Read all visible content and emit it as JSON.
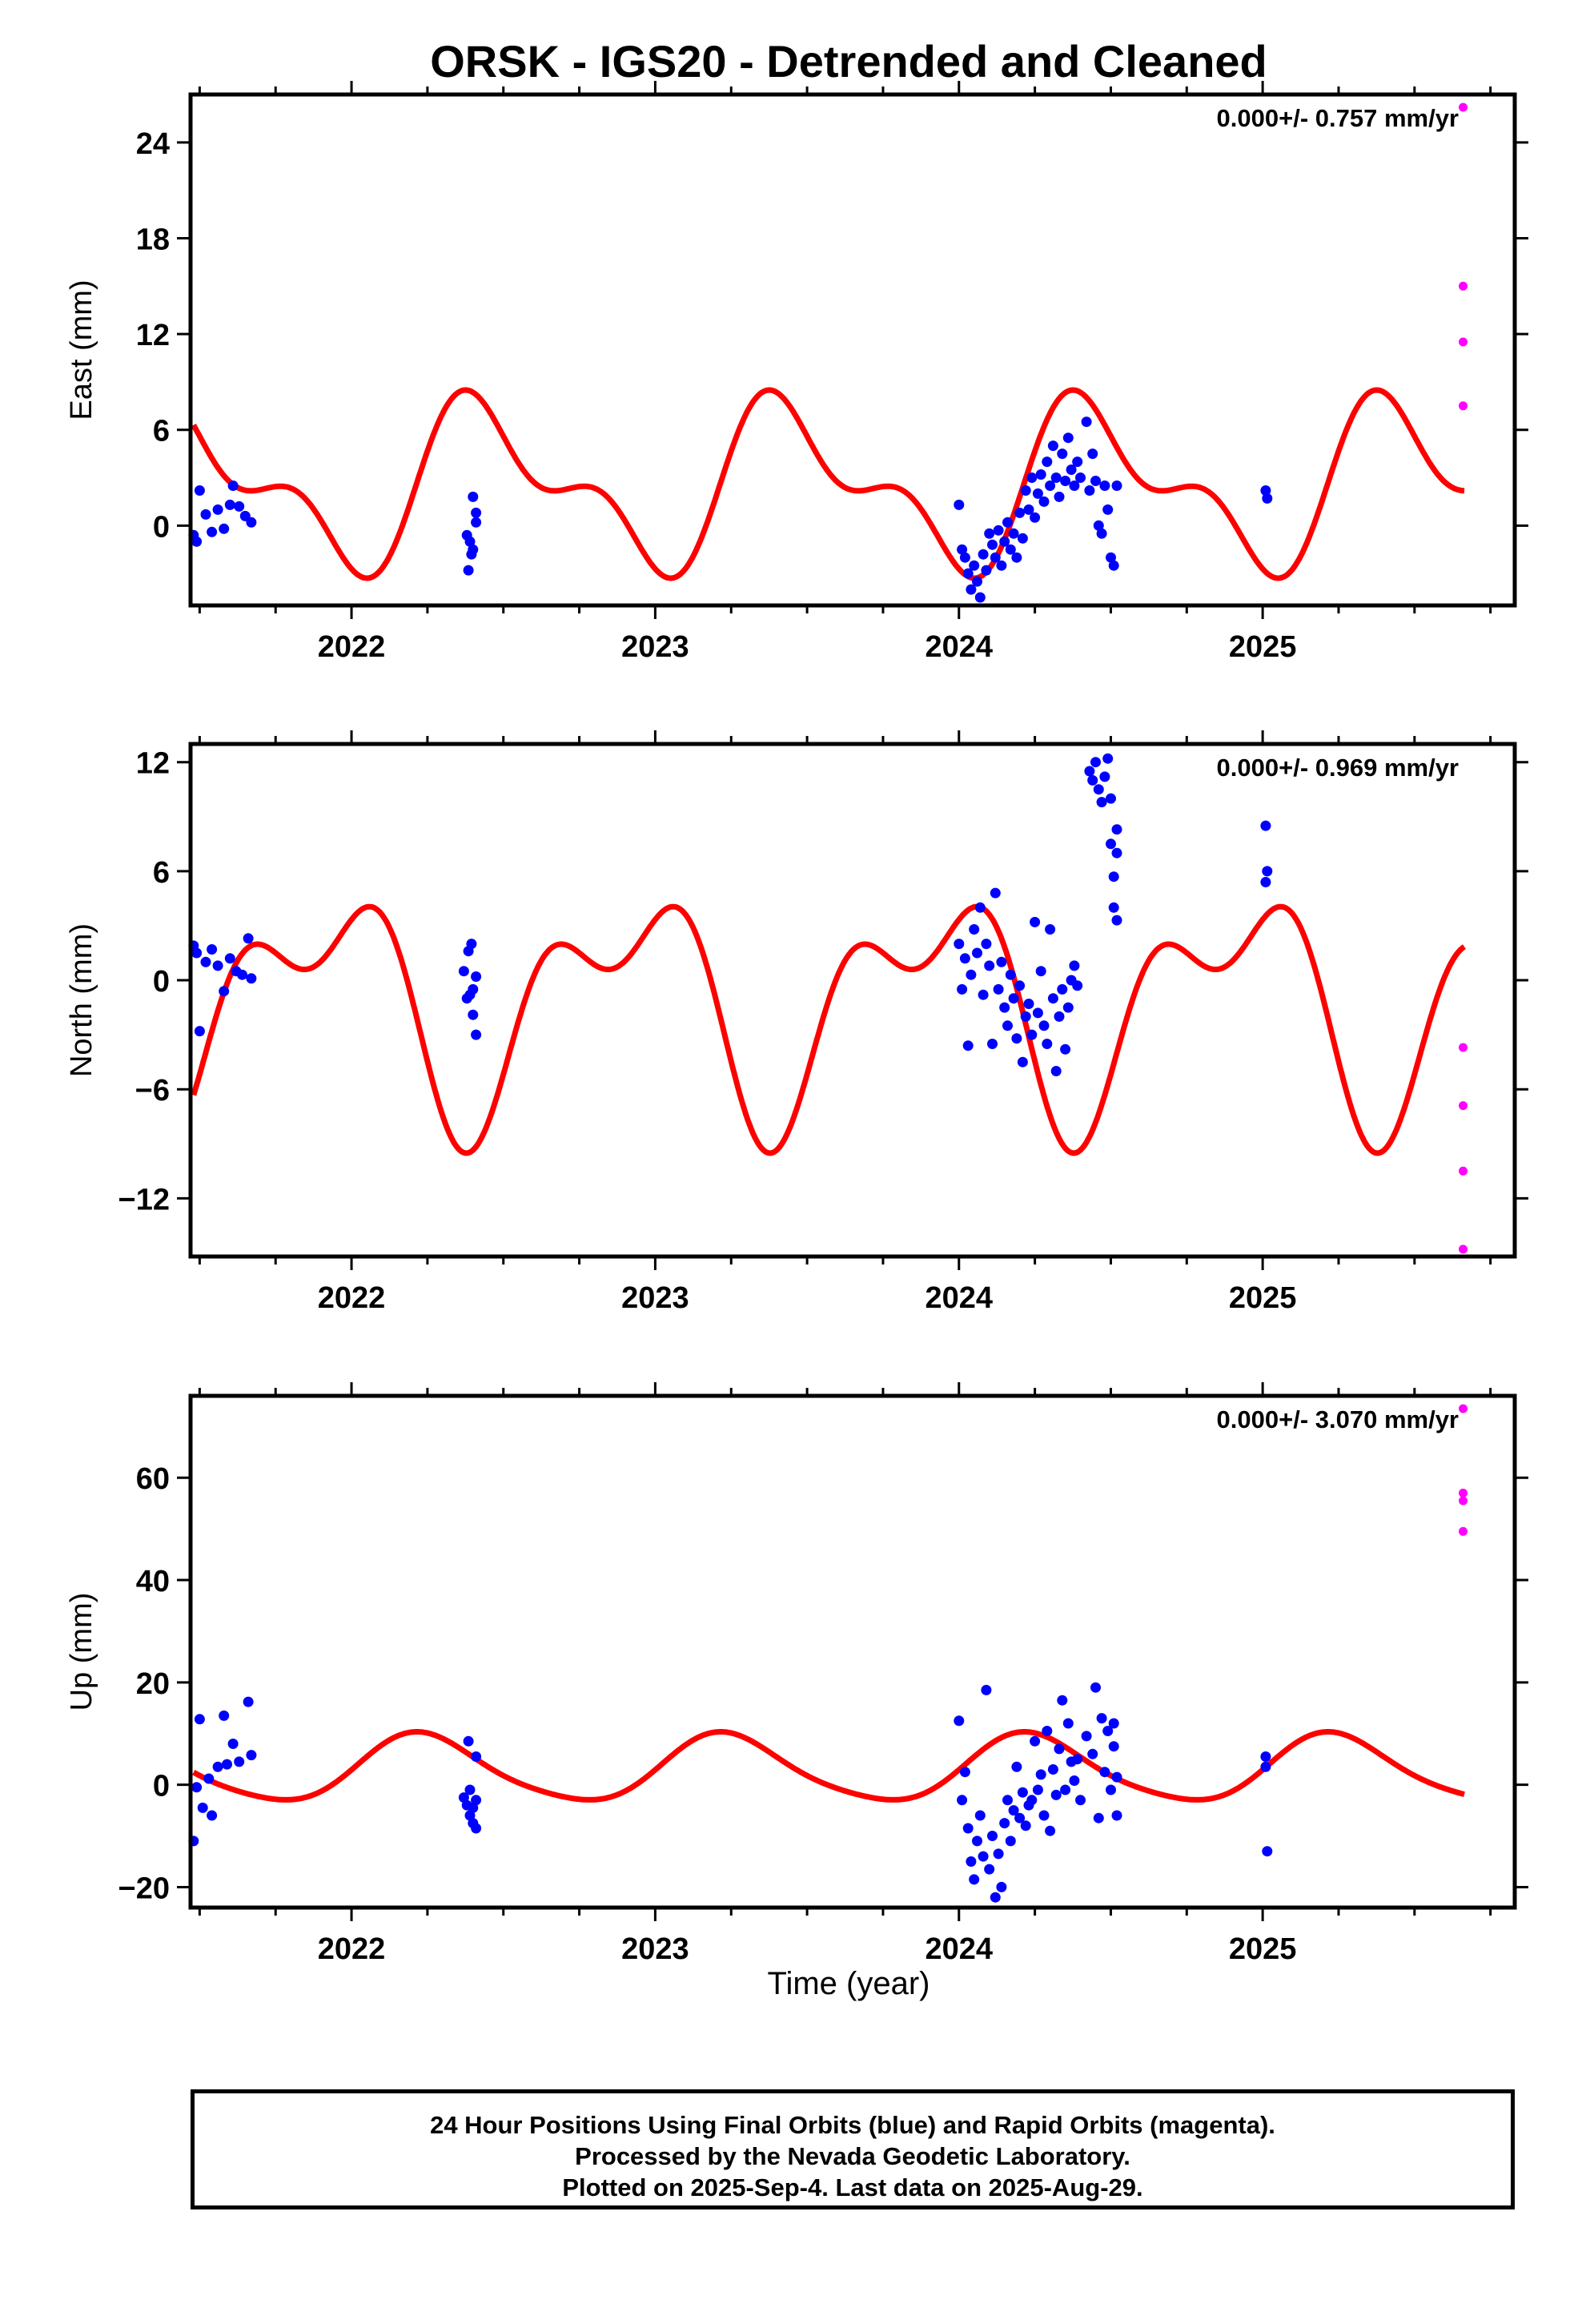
{
  "chart_data": {
    "type": "scatter",
    "title": "ORSK - IGS20 - Detrended and Cleaned",
    "xlabel": "Time (year)",
    "xlim": [
      2021.47,
      2025.83
    ],
    "xticks": [
      2022,
      2023,
      2024,
      2025
    ],
    "colors": {
      "final": "#0000ff",
      "rapid": "#ff00ff",
      "model": "#ff0000",
      "axes": "#000000"
    },
    "panels": [
      {
        "name": "east",
        "ylabel": "East (mm)",
        "ylim": [
          -5.0,
          27.0
        ],
        "yticks": [
          0,
          6,
          12,
          18,
          24
        ],
        "ytick_labels": [
          "0",
          "6",
          "12",
          "18",
          "24"
        ],
        "rate": "0.000+/- 0.757 mm/yr",
        "model": {
          "offset": 2.5,
          "annual_amp": 4.3,
          "annual_phase_deg": 285,
          "semiannual_amp": 2.5,
          "semiannual_phase_deg": 205
        },
        "final": [
          [
            2021.48,
            -0.6
          ],
          [
            2021.49,
            -1.0
          ],
          [
            2021.5,
            2.2
          ],
          [
            2021.52,
            0.7
          ],
          [
            2021.54,
            -0.4
          ],
          [
            2021.56,
            1.0
          ],
          [
            2021.58,
            -0.2
          ],
          [
            2021.6,
            1.3
          ],
          [
            2021.61,
            2.5
          ],
          [
            2021.63,
            1.2
          ],
          [
            2021.65,
            0.6
          ],
          [
            2021.67,
            0.2
          ],
          [
            2022.38,
            -0.6
          ],
          [
            2022.385,
            -2.8
          ],
          [
            2022.39,
            -1.0
          ],
          [
            2022.395,
            -1.8
          ],
          [
            2022.4,
            1.8
          ],
          [
            2022.4,
            -1.5
          ],
          [
            2022.41,
            0.8
          ],
          [
            2022.41,
            0.2
          ],
          [
            2024.0,
            1.3
          ],
          [
            2024.01,
            -1.5
          ],
          [
            2024.02,
            -2.0
          ],
          [
            2024.03,
            -3.0
          ],
          [
            2024.04,
            -4.0
          ],
          [
            2024.05,
            -2.5
          ],
          [
            2024.06,
            -3.5
          ],
          [
            2024.07,
            -4.5
          ],
          [
            2024.08,
            -1.8
          ],
          [
            2024.09,
            -2.8
          ],
          [
            2024.1,
            -0.5
          ],
          [
            2024.11,
            -1.2
          ],
          [
            2024.12,
            -2.0
          ],
          [
            2024.13,
            -0.3
          ],
          [
            2024.14,
            -2.5
          ],
          [
            2024.15,
            -1.0
          ],
          [
            2024.16,
            0.2
          ],
          [
            2024.17,
            -1.5
          ],
          [
            2024.18,
            -0.5
          ],
          [
            2024.19,
            -2.0
          ],
          [
            2024.2,
            0.8
          ],
          [
            2024.21,
            -0.8
          ],
          [
            2024.22,
            2.2
          ],
          [
            2024.23,
            1.0
          ],
          [
            2024.24,
            3.0
          ],
          [
            2024.25,
            0.5
          ],
          [
            2024.26,
            2.0
          ],
          [
            2024.27,
            3.2
          ],
          [
            2024.28,
            1.5
          ],
          [
            2024.29,
            4.0
          ],
          [
            2024.3,
            2.5
          ],
          [
            2024.31,
            5.0
          ],
          [
            2024.32,
            3.0
          ],
          [
            2024.33,
            1.8
          ],
          [
            2024.34,
            4.5
          ],
          [
            2024.35,
            2.8
          ],
          [
            2024.36,
            5.5
          ],
          [
            2024.37,
            3.5
          ],
          [
            2024.38,
            2.5
          ],
          [
            2024.39,
            4.0
          ],
          [
            2024.4,
            3.0
          ],
          [
            2024.42,
            6.5
          ],
          [
            2024.43,
            2.2
          ],
          [
            2024.44,
            4.5
          ],
          [
            2024.45,
            2.8
          ],
          [
            2024.46,
            0.0
          ],
          [
            2024.47,
            -0.5
          ],
          [
            2024.48,
            2.5
          ],
          [
            2024.49,
            1.0
          ],
          [
            2024.5,
            -2.0
          ],
          [
            2024.51,
            -2.5
          ],
          [
            2024.52,
            2.5
          ],
          [
            2025.01,
            2.2
          ],
          [
            2025.015,
            1.7
          ]
        ],
        "rapid": [
          [
            2025.66,
            26.2
          ],
          [
            2025.66,
            15.0
          ],
          [
            2025.66,
            11.5
          ],
          [
            2025.66,
            7.5
          ]
        ]
      },
      {
        "name": "north",
        "ylabel": "North (mm)",
        "ylim": [
          -15.2,
          13.0
        ],
        "yticks": [
          -12,
          -6,
          0,
          6,
          12
        ],
        "ytick_labels": [
          "−12",
          "−6",
          "0",
          "6",
          "12"
        ],
        "rate": "0.000+/- 0.969 mm/yr",
        "model": {
          "offset": -1.2,
          "annual_amp": 5.2,
          "annual_phase_deg": 125,
          "semiannual_amp": 3.2,
          "semiannual_phase_deg": 5
        },
        "final": [
          [
            2021.48,
            1.9
          ],
          [
            2021.49,
            1.5
          ],
          [
            2021.5,
            -2.8
          ],
          [
            2021.52,
            1.0
          ],
          [
            2021.54,
            1.7
          ],
          [
            2021.56,
            0.8
          ],
          [
            2021.58,
            -0.6
          ],
          [
            2021.6,
            1.2
          ],
          [
            2021.62,
            0.5
          ],
          [
            2021.64,
            0.3
          ],
          [
            2021.66,
            2.3
          ],
          [
            2021.67,
            0.1
          ],
          [
            2022.37,
            0.5
          ],
          [
            2022.38,
            -1.0
          ],
          [
            2022.385,
            1.6
          ],
          [
            2022.39,
            -0.8
          ],
          [
            2022.395,
            2.0
          ],
          [
            2022.4,
            -1.9
          ],
          [
            2022.4,
            -0.5
          ],
          [
            2022.41,
            -3.0
          ],
          [
            2022.41,
            0.2
          ],
          [
            2024.0,
            2.0
          ],
          [
            2024.01,
            -0.5
          ],
          [
            2024.02,
            1.2
          ],
          [
            2024.03,
            -3.6
          ],
          [
            2024.04,
            0.3
          ],
          [
            2024.05,
            2.8
          ],
          [
            2024.06,
            1.5
          ],
          [
            2024.07,
            4.0
          ],
          [
            2024.08,
            -0.8
          ],
          [
            2024.09,
            2.0
          ],
          [
            2024.1,
            0.8
          ],
          [
            2024.11,
            -3.5
          ],
          [
            2024.12,
            4.8
          ],
          [
            2024.13,
            -0.5
          ],
          [
            2024.14,
            1.0
          ],
          [
            2024.15,
            -1.5
          ],
          [
            2024.16,
            -2.5
          ],
          [
            2024.17,
            0.3
          ],
          [
            2024.18,
            -1.0
          ],
          [
            2024.19,
            -3.2
          ],
          [
            2024.2,
            -0.3
          ],
          [
            2024.21,
            -4.5
          ],
          [
            2024.22,
            -2.0
          ],
          [
            2024.23,
            -1.3
          ],
          [
            2024.24,
            -3.0
          ],
          [
            2024.25,
            3.2
          ],
          [
            2024.26,
            -1.8
          ],
          [
            2024.27,
            0.5
          ],
          [
            2024.28,
            -2.5
          ],
          [
            2024.29,
            -3.5
          ],
          [
            2024.3,
            2.8
          ],
          [
            2024.31,
            -1.0
          ],
          [
            2024.32,
            -5.0
          ],
          [
            2024.33,
            -2.0
          ],
          [
            2024.34,
            -0.5
          ],
          [
            2024.35,
            -3.8
          ],
          [
            2024.36,
            -1.5
          ],
          [
            2024.37,
            0.0
          ],
          [
            2024.38,
            0.8
          ],
          [
            2024.39,
            -0.3
          ],
          [
            2024.43,
            11.5
          ],
          [
            2024.44,
            11.0
          ],
          [
            2024.45,
            12.0
          ],
          [
            2024.46,
            10.5
          ],
          [
            2024.47,
            9.8
          ],
          [
            2024.48,
            11.2
          ],
          [
            2024.49,
            12.2
          ],
          [
            2024.5,
            10.0
          ],
          [
            2024.5,
            7.5
          ],
          [
            2024.51,
            5.7
          ],
          [
            2024.51,
            4.0
          ],
          [
            2024.52,
            3.3
          ],
          [
            2024.52,
            8.3
          ],
          [
            2024.52,
            7.0
          ],
          [
            2025.01,
            8.5
          ],
          [
            2025.015,
            6.0
          ],
          [
            2025.01,
            5.4
          ]
        ],
        "rapid": [
          [
            2025.66,
            -3.7
          ],
          [
            2025.66,
            -6.9
          ],
          [
            2025.66,
            -10.5
          ],
          [
            2025.66,
            -14.8
          ]
        ]
      },
      {
        "name": "up",
        "ylabel": "Up (mm)",
        "ylim": [
          -24.0,
          76.0
        ],
        "yticks": [
          -20,
          0,
          20,
          40,
          60
        ],
        "ytick_labels": [
          "−20",
          "0",
          "20",
          "40",
          "60"
        ],
        "rate": "0.000+/- 3.070 mm/yr",
        "model": {
          "offset": 3.0,
          "annual_amp": 6.5,
          "annual_phase_deg": 5,
          "semiannual_amp": 1.0,
          "semiannual_phase_deg": 320
        },
        "final": [
          [
            2021.48,
            -11.0
          ],
          [
            2021.49,
            -0.5
          ],
          [
            2021.5,
            12.8
          ],
          [
            2021.51,
            -4.5
          ],
          [
            2021.53,
            1.2
          ],
          [
            2021.54,
            -6.0
          ],
          [
            2021.56,
            3.5
          ],
          [
            2021.58,
            13.5
          ],
          [
            2021.59,
            4.0
          ],
          [
            2021.61,
            8.0
          ],
          [
            2021.63,
            4.5
          ],
          [
            2021.66,
            16.2
          ],
          [
            2021.67,
            5.8
          ],
          [
            2022.37,
            -2.5
          ],
          [
            2022.38,
            -4.0
          ],
          [
            2022.385,
            8.5
          ],
          [
            2022.39,
            -6.0
          ],
          [
            2022.39,
            -1.0
          ],
          [
            2022.4,
            -7.5
          ],
          [
            2022.4,
            -4.5
          ],
          [
            2022.41,
            5.5
          ],
          [
            2022.41,
            -8.5
          ],
          [
            2022.41,
            -3.0
          ],
          [
            2024.0,
            12.5
          ],
          [
            2024.01,
            -3.0
          ],
          [
            2024.02,
            2.5
          ],
          [
            2024.03,
            -8.5
          ],
          [
            2024.04,
            -15.0
          ],
          [
            2024.05,
            -18.5
          ],
          [
            2024.06,
            -11.0
          ],
          [
            2024.07,
            -6.0
          ],
          [
            2024.08,
            -14.0
          ],
          [
            2024.09,
            18.5
          ],
          [
            2024.1,
            -16.5
          ],
          [
            2024.11,
            -10.0
          ],
          [
            2024.12,
            -22.0
          ],
          [
            2024.13,
            -13.5
          ],
          [
            2024.14,
            -20.0
          ],
          [
            2024.15,
            -7.5
          ],
          [
            2024.16,
            -3.0
          ],
          [
            2024.17,
            -11.0
          ],
          [
            2024.18,
            -5.0
          ],
          [
            2024.19,
            3.5
          ],
          [
            2024.2,
            -6.5
          ],
          [
            2024.21,
            -1.5
          ],
          [
            2024.22,
            -8.0
          ],
          [
            2024.23,
            -4.0
          ],
          [
            2024.24,
            -3.0
          ],
          [
            2024.25,
            8.5
          ],
          [
            2024.26,
            -1.0
          ],
          [
            2024.27,
            2.0
          ],
          [
            2024.28,
            -6.0
          ],
          [
            2024.29,
            10.5
          ],
          [
            2024.3,
            -9.0
          ],
          [
            2024.31,
            3.0
          ],
          [
            2024.32,
            -2.0
          ],
          [
            2024.33,
            7.0
          ],
          [
            2024.34,
            16.5
          ],
          [
            2024.35,
            -1.0
          ],
          [
            2024.36,
            12.0
          ],
          [
            2024.37,
            4.5
          ],
          [
            2024.38,
            0.8
          ],
          [
            2024.39,
            5.0
          ],
          [
            2024.4,
            -3.0
          ],
          [
            2024.42,
            9.5
          ],
          [
            2024.44,
            6.0
          ],
          [
            2024.45,
            19.0
          ],
          [
            2024.46,
            -6.5
          ],
          [
            2024.47,
            13.0
          ],
          [
            2024.48,
            2.5
          ],
          [
            2024.49,
            10.5
          ],
          [
            2024.5,
            -1.0
          ],
          [
            2024.51,
            7.5
          ],
          [
            2024.51,
            12.0
          ],
          [
            2024.52,
            -6.0
          ],
          [
            2024.52,
            1.5
          ],
          [
            2025.01,
            5.5
          ],
          [
            2025.01,
            3.5
          ],
          [
            2025.015,
            -13.0
          ]
        ],
        "rapid": [
          [
            2025.66,
            73.5
          ],
          [
            2025.66,
            57.0
          ],
          [
            2025.66,
            55.5
          ],
          [
            2025.66,
            49.5
          ]
        ]
      }
    ]
  },
  "legend": {
    "line1": "24 Hour Positions Using Final Orbits (blue) and Rapid Orbits (magenta).",
    "line2": "Processed by the Nevada Geodetic Laboratory.",
    "line3": "Plotted on 2025-Sep-4. Last data on 2025-Aug-29."
  }
}
